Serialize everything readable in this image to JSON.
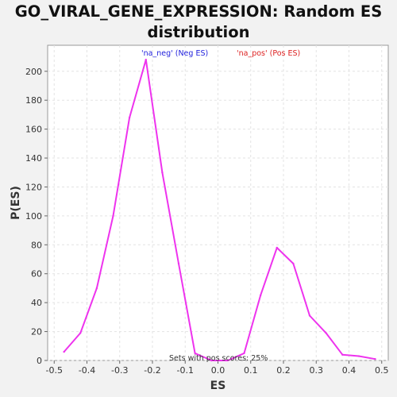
{
  "chart_data": {
    "type": "line",
    "title_line1": "GO_VIRAL_GENE_EXPRESSION: Random ES",
    "title_line2": "distribution",
    "xlabel": "ES",
    "ylabel": "P(ES)",
    "xlim": [
      -0.52,
      0.52
    ],
    "ylim": [
      0,
      218
    ],
    "xticks": [
      -0.5,
      -0.4,
      -0.3,
      -0.2,
      -0.1,
      0.0,
      0.1,
      0.2,
      0.3,
      0.4,
      0.5
    ],
    "xtick_labels": [
      "-0.5",
      "-0.4",
      "-0.3",
      "-0.2",
      "-0.1",
      "0.0",
      "0.1",
      "0.2",
      "0.3",
      "0.4",
      "0.5"
    ],
    "yticks": [
      0,
      20,
      40,
      60,
      80,
      100,
      120,
      140,
      160,
      180,
      200
    ],
    "ytick_labels": [
      "0",
      "20",
      "40",
      "60",
      "80",
      "100",
      "120",
      "140",
      "160",
      "180",
      "200"
    ],
    "grid": true,
    "legend": [
      {
        "label": "'na_neg' (Neg ES)",
        "color": "#2222dd"
      },
      {
        "label": "'na_pos' (Pos ES)",
        "color": "#dd2222"
      }
    ],
    "annotation": "Sets with pos scores: 25%",
    "series": [
      {
        "name": "Random ES",
        "color": "#ee33ee",
        "x": [
          -0.47,
          -0.42,
          -0.37,
          -0.32,
          -0.27,
          -0.22,
          -0.17,
          -0.12,
          -0.07,
          -0.02,
          0.03,
          0.08,
          0.13,
          0.18,
          0.23,
          0.28,
          0.33,
          0.38,
          0.43,
          0.48
        ],
        "y": [
          6,
          19,
          50,
          100,
          168,
          208,
          130,
          67,
          5,
          0,
          0,
          5,
          45,
          78,
          67,
          31,
          19,
          4,
          3,
          1
        ]
      }
    ]
  }
}
